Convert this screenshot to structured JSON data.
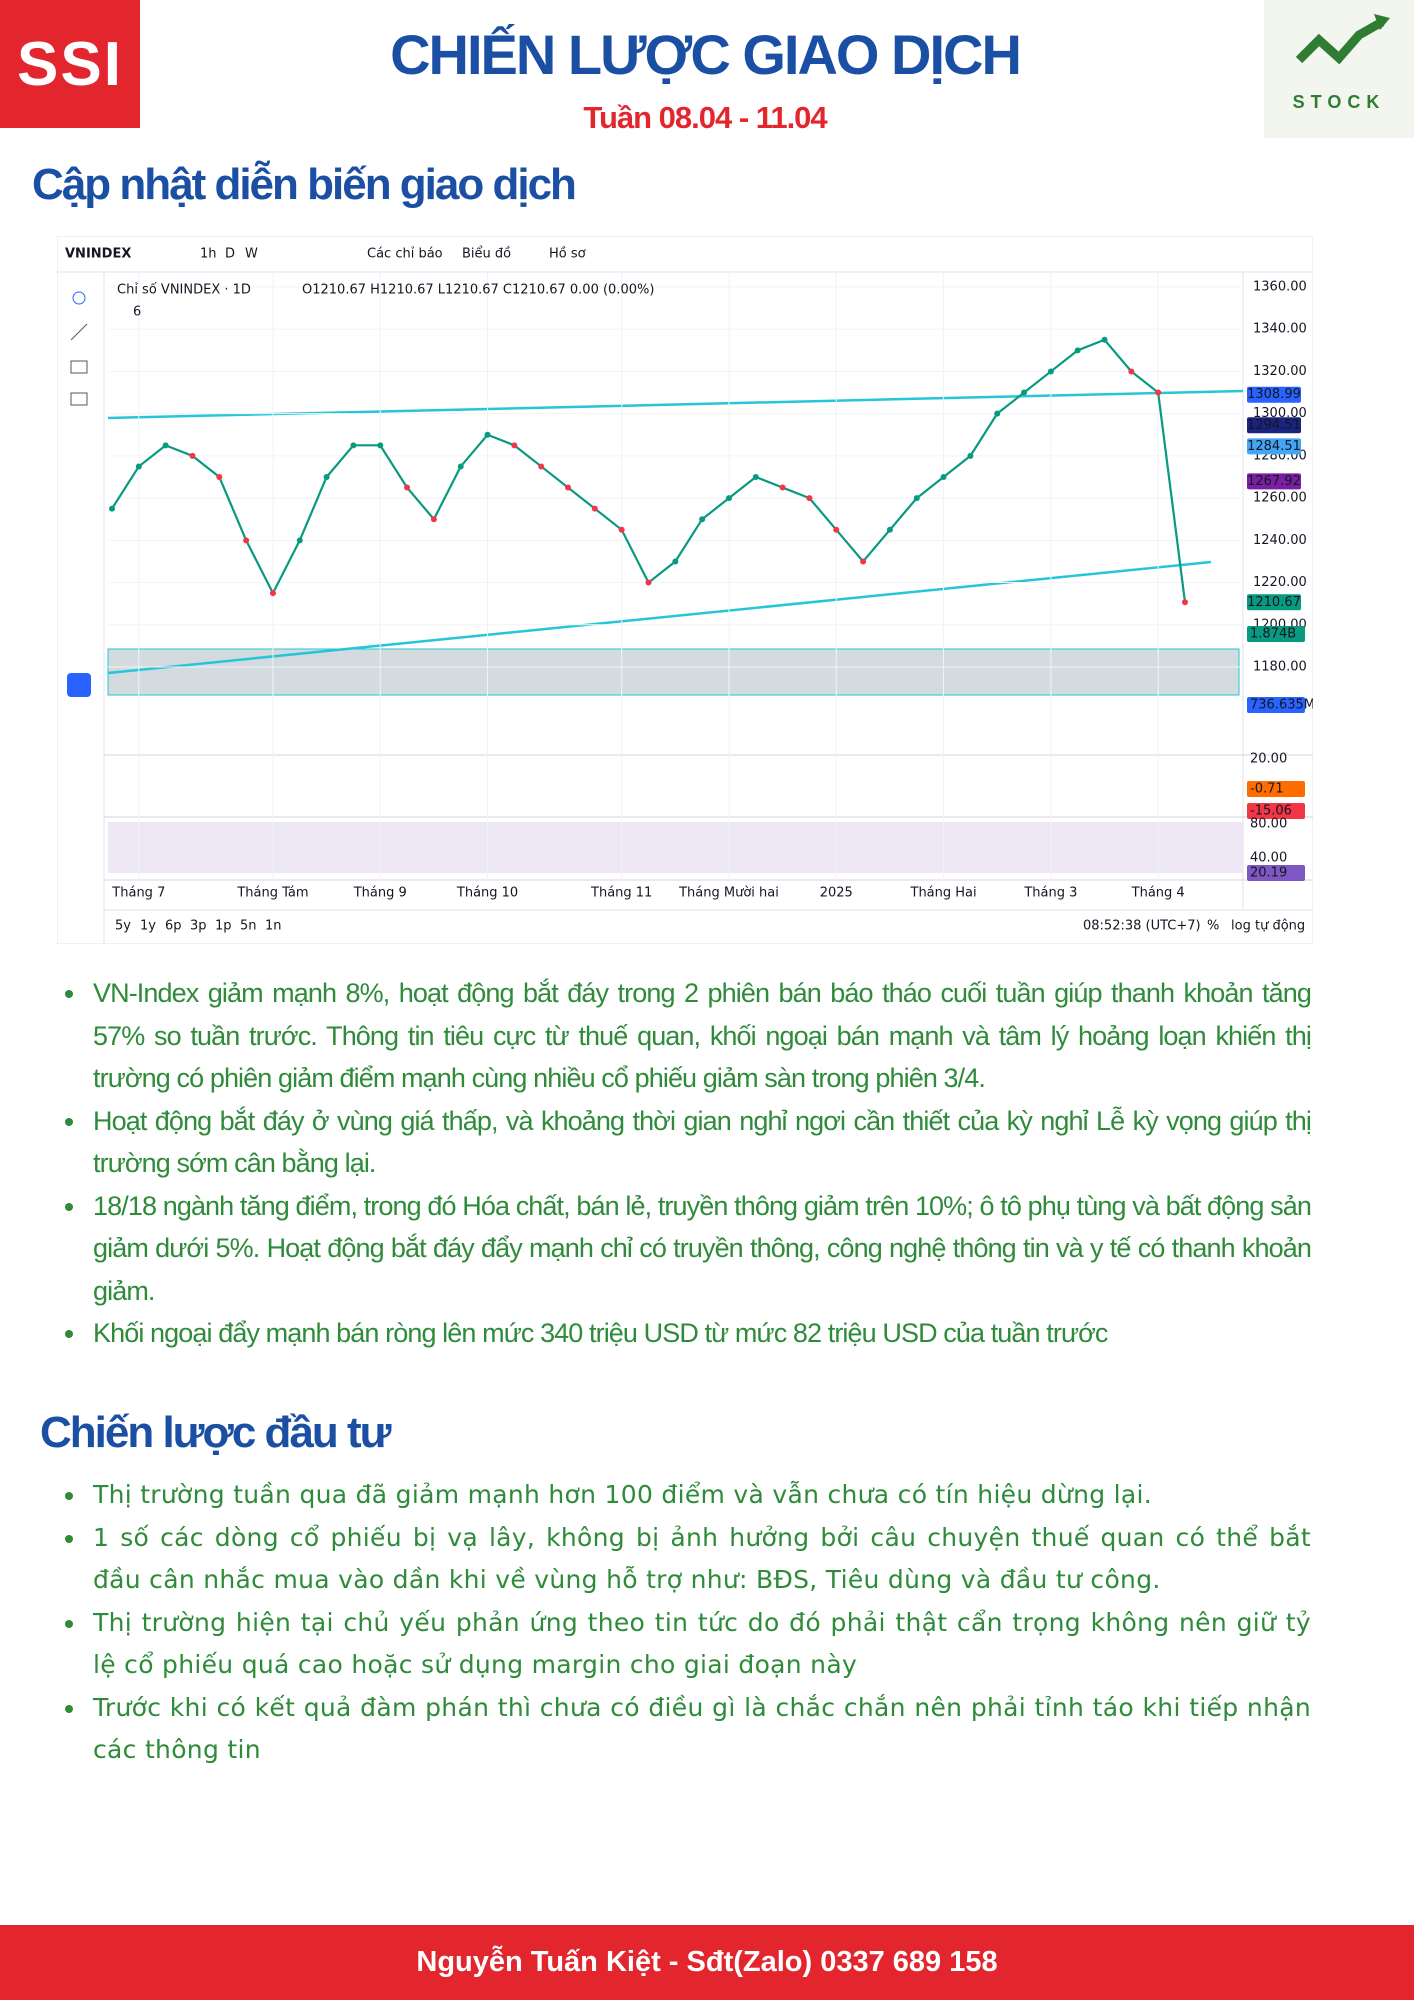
{
  "header": {
    "logo_left": "SSI",
    "title": "CHIẾN LƯỢC GIAO DỊCH",
    "subtitle": "Tuần 08.04 - 11.04",
    "logo_right": "STOCK"
  },
  "sections": [
    {
      "heading": "Cập nhật diễn biến giao dịch",
      "bullets": [
        "VN-Index giảm mạnh 8%, hoạt động bắt đáy trong 2 phiên bán báo tháo cuối tuần giúp thanh khoản tăng 57% so tuần trước. Thông tin tiêu cực từ thuế quan, khối ngoại bán mạnh và tâm lý hoảng loạn khiến thị trường có phiên giảm điểm mạnh cùng nhiều cổ phiếu giảm sàn trong phiên 3/4.",
        "Hoạt động bắt đáy ở vùng giá thấp, và khoảng thời gian nghỉ ngơi cần thiết của kỳ nghỉ Lễ kỳ vọng giúp thị trường sớm cân bằng lại.",
        "18/18 ngành tăng điểm, trong đó Hóa chất, bán lẻ, truyền thông giảm trên 10%; ô tô phụ tùng và bất động sản giảm dưới 5%. Hoạt động bắt đáy đẩy mạnh chỉ có truyền thông, công nghệ thông tin và y tế có thanh khoản giảm.",
        "Khối ngoại đẩy mạnh bán ròng lên mức 340 triệu USD từ mức 82 triệu USD của tuần trước"
      ]
    },
    {
      "heading": "Chiến lược đầu tư",
      "bullets": [
        "Thị trường tuần qua đã giảm mạnh hơn 100 điểm và vẫn chưa có tín hiệu dừng lại.",
        "1 số các dòng cổ phiếu bị vạ lây, không bị ảnh hưởng bởi câu chuyện thuế quan có thể bắt đầu cân nhắc mua vào dần khi về vùng hỗ trợ như: BĐS, Tiêu dùng và đầu tư công.",
        "Thị trường  hiện tại chủ yếu phản ứng theo tin tức do đó phải  thật cẩn trọng không nên giữ tỷ lệ cổ phiếu quá cao hoặc sử dụng margin cho  giai đoạn này",
        "Trước khi có kết quả đàm phán thì  chưa  có điều gì là  chắc chắn nên phải tỉnh táo khi tiếp nhận các thông tin"
      ]
    }
  ],
  "chart_ui": {
    "symbol": "VNINDEX",
    "intervals": [
      "1h",
      "D",
      "W"
    ],
    "menus": [
      "Các chỉ báo",
      "Biểu đồ",
      "Hồ sơ"
    ],
    "ohlc": "O1210.67 H1210.67 L1210.67 C1210.67 0.00 (0.00%)",
    "collapsed": "6",
    "ranges": [
      "5y",
      "1y",
      "6p",
      "3p",
      "1p",
      "5n",
      "1n"
    ],
    "clock": "08:52:38 (UTC+7)",
    "scale_options": [
      "%",
      "log",
      "tự động"
    ],
    "volume_labels": [
      "1.874B",
      "736.635M"
    ],
    "macd_labels": [
      "20.00",
      "-0.71",
      "-15.06"
    ],
    "rsi_labels": [
      "80.00",
      "40.00",
      "20.19"
    ]
  },
  "chart_data": {
    "type": "line",
    "categories": [
      null,
      "Tháng 7",
      null,
      null,
      null,
      null,
      "Tháng Tám",
      null,
      null,
      null,
      "Tháng 9",
      null,
      null,
      null,
      "Tháng 10",
      null,
      null,
      null,
      null,
      "Tháng 11",
      null,
      null,
      null,
      "Tháng Mười hai",
      null,
      null,
      null,
      "2025",
      null,
      null,
      null,
      "Tháng Hai",
      null,
      null,
      null,
      "Tháng 3",
      null,
      null,
      null,
      "Tháng 4",
      null
    ],
    "series": [
      {
        "name": "Chỉ số VNINDEX · 1D",
        "color": "#089981",
        "values": [
          1255,
          1275,
          1285,
          1280,
          1270,
          1240,
          1215,
          1240,
          1270,
          1285,
          1285,
          1265,
          1250,
          1275,
          1290,
          1285,
          1275,
          1265,
          1255,
          1245,
          1220,
          1230,
          1250,
          1260,
          1270,
          1265,
          1260,
          1245,
          1230,
          1245,
          1260,
          1270,
          1280,
          1300,
          1310,
          1320,
          1330,
          1335,
          1320,
          1310,
          1210.67
        ]
      }
    ],
    "ylim": [
      1180,
      1360
    ],
    "yticks": [
      {
        "value": 1360,
        "label": "1360.00"
      },
      {
        "value": 1340,
        "label": "1340.00"
      },
      {
        "value": 1320,
        "label": "1320.00"
      },
      {
        "value": 1300,
        "label": "1300.00"
      },
      {
        "value": 1280,
        "label": "1280.00"
      },
      {
        "value": 1260,
        "label": "1260.00"
      },
      {
        "value": 1240,
        "label": "1240.00"
      },
      {
        "value": 1220,
        "label": "1220.00"
      },
      {
        "value": 1200,
        "label": "1200.00"
      },
      {
        "value": 1180,
        "label": "1180.00"
      }
    ],
    "grid": true,
    "price_tags": [
      1308.99,
      1294.51,
      1284.51,
      1267.92,
      1210.67
    ],
    "price_tag_colors": [
      "#2962ff",
      "#1a237e",
      "#42a5f5",
      "#7b1fa2",
      "#089981"
    ]
  },
  "footer": "Nguyễn Tuấn Kiệt - Sđt(Zalo) 0337 689 158"
}
